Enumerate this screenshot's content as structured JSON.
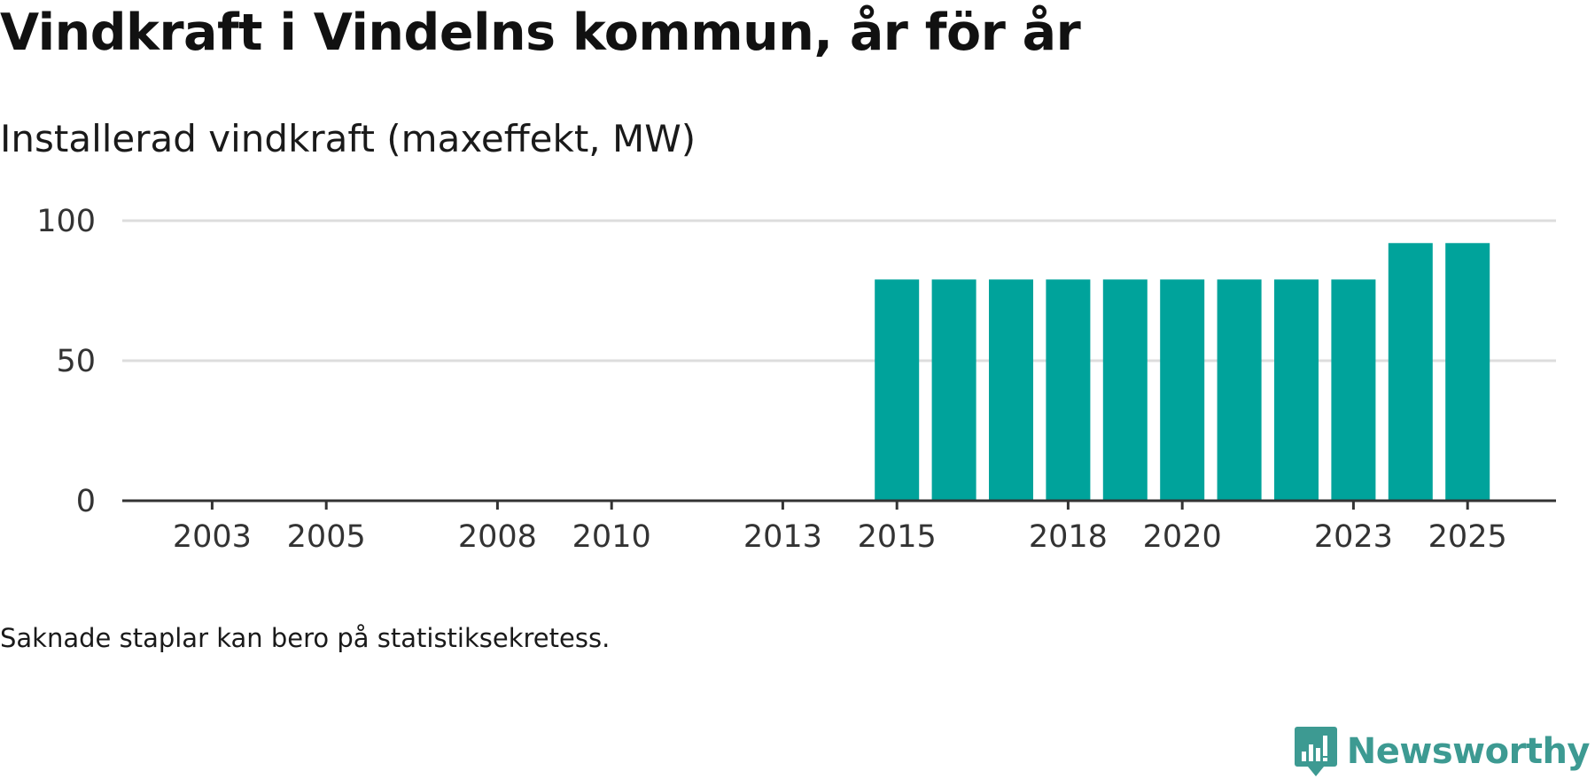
{
  "chart_data": {
    "type": "bar",
    "title": "Vindkraft i Vindelns kommun, år för år",
    "subtitle": "Installerad vindkraft (maxeffekt, MW)",
    "xlabel": "",
    "ylabel": "",
    "categories": [
      "2002",
      "2003",
      "2004",
      "2005",
      "2006",
      "2007",
      "2008",
      "2009",
      "2010",
      "2011",
      "2012",
      "2013",
      "2014",
      "2015",
      "2016",
      "2017",
      "2018",
      "2019",
      "2020",
      "2021",
      "2022",
      "2023",
      "2024",
      "2025"
    ],
    "values": [
      0,
      0,
      0,
      0,
      0,
      0,
      0,
      0,
      0,
      0,
      0,
      0,
      0,
      79,
      79,
      79,
      79,
      79,
      79,
      79,
      79,
      79,
      92,
      92
    ],
    "x_tick_labels": [
      "2003",
      "2005",
      "2008",
      "2010",
      "2013",
      "2015",
      "2018",
      "2020",
      "2023",
      "2025"
    ],
    "y_ticks": [
      0,
      50,
      100
    ],
    "ylim": [
      0,
      100
    ],
    "grid": true,
    "bar_color": "#00a39b"
  },
  "footnote": "Saknade staplar kan bero på statistiksekretess.",
  "brand": {
    "name": "Newsworthy"
  }
}
